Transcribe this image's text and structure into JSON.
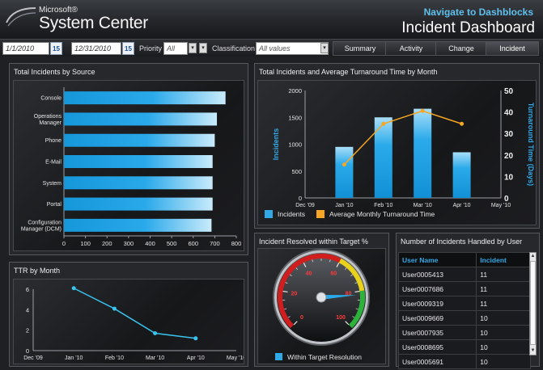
{
  "header": {
    "brand_small": "Microsoft®",
    "brand_large": "System Center",
    "nav_link": "Navigate to Dashblocks",
    "title": "Incident Dashboard"
  },
  "filters": {
    "start_date": "1/1/2010",
    "end_date": "12/31/2010",
    "calendar_day": "15",
    "priority_label": "Priority",
    "priority_value": "All",
    "classification_label": "Classification",
    "classification_value": "All values"
  },
  "tabs": [
    {
      "label": "Summary",
      "active": false
    },
    {
      "label": "Activity",
      "active": false
    },
    {
      "label": "Change",
      "active": false
    },
    {
      "label": "Incident",
      "active": true
    }
  ],
  "colors": {
    "accent": "#31a9e6",
    "line": "#f5a623",
    "ttr_line": "#39c3ef"
  },
  "panels": {
    "by_source": "Total Incidents by Source",
    "turnaround": "Total Incidents and Average Turnaround Time by Month",
    "ttr": "TTR by Month",
    "resolved": "Incident Resolved within Target %",
    "handled": "Number of Incidents Handled by User"
  },
  "chart_data": [
    {
      "type": "bar",
      "orientation": "horizontal",
      "title": "Total Incidents by Source",
      "categories": [
        "Console",
        "Operations Manager",
        "Phone",
        "E-Mail",
        "System",
        "Portal",
        "Configuration Manager (DCM)"
      ],
      "category_lines": [
        [
          "Console"
        ],
        [
          "Operations",
          "Manager"
        ],
        [
          "Phone"
        ],
        [
          "E-Mail"
        ],
        [
          "System"
        ],
        [
          "Portal"
        ],
        [
          "Configuration",
          "Manager (DCM)"
        ]
      ],
      "values": [
        750,
        710,
        700,
        690,
        690,
        690,
        685
      ],
      "xlim": [
        0,
        800
      ],
      "xticks": [
        0,
        100,
        200,
        300,
        400,
        500,
        600,
        700,
        800
      ],
      "grid": false
    },
    {
      "type": "bar+line",
      "title": "Total Incidents and Average Turnaround Time by Month",
      "categories": [
        "Jan '10",
        "Feb '10",
        "Mar '10",
        "Apr '10"
      ],
      "x_ticks": [
        "Dec '09",
        "Jan '10",
        "Feb '10",
        "Mar '10",
        "Apr '10",
        "May '10"
      ],
      "series": [
        {
          "name": "Incidents",
          "axis": "left",
          "type": "bar",
          "values": [
            950,
            1500,
            1660,
            850
          ]
        },
        {
          "name": "Average Monthly Turnaround Time",
          "axis": "right",
          "type": "line",
          "values": [
            15.5,
            34.5,
            40.5,
            34.5
          ]
        }
      ],
      "ylabel": "Incidents",
      "y2label": "Turnaround Time (Days)",
      "ylim": [
        0,
        2000
      ],
      "yticks": [
        0,
        500,
        1000,
        1500,
        2000
      ],
      "y2lim": [
        0,
        50
      ],
      "y2ticks": [
        0,
        10,
        20,
        30,
        40,
        50
      ],
      "legend": "bottom"
    },
    {
      "type": "line",
      "title": "TTR by Month",
      "x_ticks": [
        "Dec '09",
        "Jan '10",
        "Feb '10",
        "Mar '10",
        "Apr '10",
        "May '10"
      ],
      "points": [
        {
          "x": "Jan '10",
          "y": 6.1
        },
        {
          "x": "Feb '10",
          "y": 4.1
        },
        {
          "x": "Mar '10",
          "y": 1.7
        },
        {
          "x": "Apr '10",
          "y": 1.2
        }
      ],
      "ylim": [
        0,
        6
      ],
      "yticks": [
        0,
        2,
        4,
        6
      ]
    },
    {
      "type": "gauge",
      "title": "Incident Resolved within Target %",
      "min": 0,
      "max": 100,
      "value": 82,
      "tick_labels": [
        0,
        20,
        40,
        60,
        80,
        100
      ],
      "legend": "Within Target Resolution"
    }
  ],
  "user_table": {
    "headers": [
      "User Name",
      "Incident"
    ],
    "rows": [
      {
        "user": "User0005413",
        "count": "11"
      },
      {
        "user": "User0007686",
        "count": "11"
      },
      {
        "user": "User0009319",
        "count": "11"
      },
      {
        "user": "User0009669",
        "count": "10"
      },
      {
        "user": "User0007935",
        "count": "10"
      },
      {
        "user": "User0008695",
        "count": "10"
      },
      {
        "user": "User0005691",
        "count": "10"
      }
    ]
  }
}
